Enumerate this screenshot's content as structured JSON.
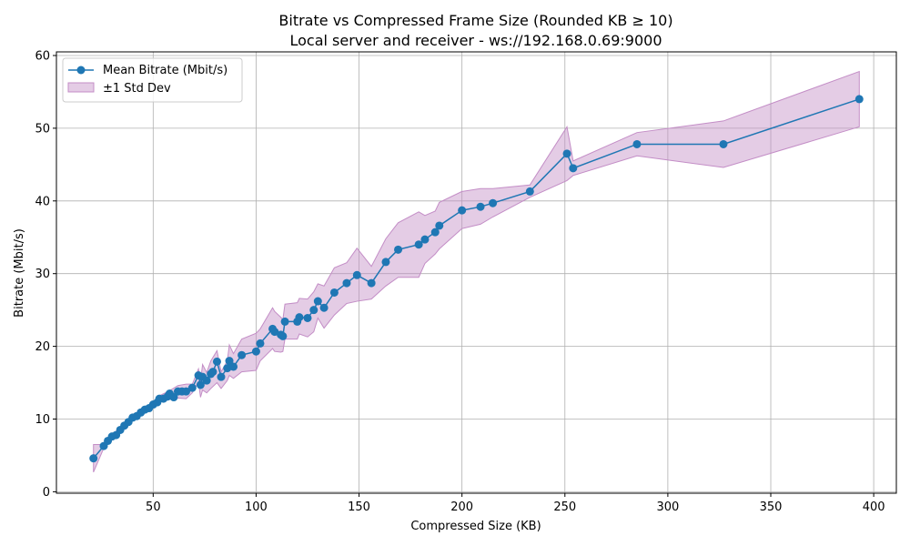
{
  "chart_data": {
    "type": "line",
    "title_line1": "Bitrate vs Compressed Frame Size (Rounded KB ≥ 10)",
    "title_line2": "Local server and receiver - ws://192.168.0.69:9000",
    "xlabel": "Compressed Size (KB)",
    "ylabel": "Bitrate (Mbit/s)",
    "xlim": [
      3,
      411
    ],
    "ylim": [
      -0.2,
      60.5
    ],
    "xticks": [
      50,
      100,
      150,
      200,
      250,
      300,
      350,
      400
    ],
    "yticks": [
      0,
      10,
      20,
      30,
      40,
      50,
      60
    ],
    "grid": true,
    "legend_position": "top-left",
    "series": [
      {
        "name": "Mean Bitrate (Mbit/s)",
        "color": "#1f77b4",
        "points": [
          [
            21,
            4.6
          ],
          [
            26,
            6.3
          ],
          [
            28,
            7.0
          ],
          [
            30,
            7.6
          ],
          [
            32,
            7.8
          ],
          [
            34,
            8.5
          ],
          [
            36,
            9.1
          ],
          [
            38,
            9.6
          ],
          [
            40,
            10.2
          ],
          [
            42,
            10.4
          ],
          [
            44,
            10.9
          ],
          [
            46,
            11.3
          ],
          [
            48,
            11.5
          ],
          [
            50,
            12.0
          ],
          [
            52,
            12.3
          ],
          [
            53,
            12.8
          ],
          [
            55,
            12.8
          ],
          [
            57,
            13.1
          ],
          [
            58,
            13.5
          ],
          [
            60,
            13.0
          ],
          [
            62,
            13.8
          ],
          [
            64,
            13.8
          ],
          [
            66,
            13.8
          ],
          [
            69,
            14.3
          ],
          [
            72,
            16.0
          ],
          [
            73,
            14.7
          ],
          [
            74,
            15.8
          ],
          [
            76,
            15.3
          ],
          [
            78,
            16.2
          ],
          [
            79,
            16.5
          ],
          [
            81,
            17.9
          ],
          [
            83,
            15.8
          ],
          [
            86,
            17.0
          ],
          [
            87,
            18.0
          ],
          [
            89,
            17.2
          ],
          [
            93,
            18.8
          ],
          [
            100,
            19.3
          ],
          [
            102,
            20.4
          ],
          [
            108,
            22.4
          ],
          [
            109,
            22.0
          ],
          [
            112,
            21.6
          ],
          [
            113,
            21.4
          ],
          [
            114,
            23.4
          ],
          [
            120,
            23.4
          ],
          [
            121,
            24.0
          ],
          [
            125,
            23.9
          ],
          [
            128,
            25.0
          ],
          [
            130,
            26.2
          ],
          [
            133,
            25.3
          ],
          [
            138,
            27.4
          ],
          [
            144,
            28.7
          ],
          [
            149,
            29.8
          ],
          [
            156,
            28.7
          ],
          [
            163,
            31.6
          ],
          [
            169,
            33.3
          ],
          [
            179,
            34.0
          ],
          [
            182,
            34.7
          ],
          [
            187,
            35.7
          ],
          [
            189,
            36.6
          ],
          [
            200,
            38.7
          ],
          [
            209,
            39.2
          ],
          [
            215,
            39.7
          ],
          [
            233,
            41.3
          ],
          [
            251,
            46.5
          ],
          [
            254,
            44.5
          ],
          [
            285,
            47.8
          ],
          [
            327,
            47.8
          ],
          [
            393,
            54.0
          ]
        ]
      },
      {
        "name": "±1 Std Dev",
        "color": "#c38dc6",
        "upper": [
          [
            21,
            6.5
          ],
          [
            26,
            6.5
          ],
          [
            30,
            7.8
          ],
          [
            36,
            9.4
          ],
          [
            40,
            10.5
          ],
          [
            46,
            11.5
          ],
          [
            50,
            12.3
          ],
          [
            53,
            13.2
          ],
          [
            58,
            13.9
          ],
          [
            62,
            14.6
          ],
          [
            66,
            14.8
          ],
          [
            69,
            14.8
          ],
          [
            72,
            16.9
          ],
          [
            73,
            15.2
          ],
          [
            74,
            17.5
          ],
          [
            76,
            16.4
          ],
          [
            78,
            18.0
          ],
          [
            81,
            19.4
          ],
          [
            83,
            16.5
          ],
          [
            86,
            18.0
          ],
          [
            87,
            20.2
          ],
          [
            89,
            19.0
          ],
          [
            93,
            21.0
          ],
          [
            100,
            21.8
          ],
          [
            102,
            22.4
          ],
          [
            108,
            25.3
          ],
          [
            109,
            24.8
          ],
          [
            112,
            24.0
          ],
          [
            113,
            23.7
          ],
          [
            114,
            25.8
          ],
          [
            120,
            26.0
          ],
          [
            121,
            26.6
          ],
          [
            125,
            26.5
          ],
          [
            128,
            27.5
          ],
          [
            130,
            28.6
          ],
          [
            133,
            28.3
          ],
          [
            138,
            30.8
          ],
          [
            144,
            31.5
          ],
          [
            149,
            33.5
          ],
          [
            156,
            31.0
          ],
          [
            163,
            34.8
          ],
          [
            169,
            37.0
          ],
          [
            179,
            38.5
          ],
          [
            182,
            38.0
          ],
          [
            187,
            38.6
          ],
          [
            189,
            39.8
          ],
          [
            200,
            41.3
          ],
          [
            209,
            41.7
          ],
          [
            215,
            41.7
          ],
          [
            233,
            42.2
          ],
          [
            251,
            50.2
          ],
          [
            254,
            45.5
          ],
          [
            285,
            49.4
          ],
          [
            327,
            51.0
          ],
          [
            393,
            57.8
          ]
        ],
        "lower": [
          [
            21,
            2.7
          ],
          [
            26,
            6.0
          ],
          [
            30,
            7.4
          ],
          [
            36,
            8.8
          ],
          [
            40,
            9.9
          ],
          [
            46,
            11.0
          ],
          [
            50,
            11.7
          ],
          [
            53,
            12.3
          ],
          [
            58,
            12.7
          ],
          [
            62,
            12.9
          ],
          [
            66,
            12.8
          ],
          [
            69,
            13.6
          ],
          [
            72,
            15.1
          ],
          [
            73,
            13.0
          ],
          [
            74,
            14.0
          ],
          [
            76,
            13.6
          ],
          [
            78,
            14.2
          ],
          [
            81,
            15.0
          ],
          [
            83,
            14.2
          ],
          [
            86,
            15.3
          ],
          [
            87,
            16.0
          ],
          [
            89,
            15.6
          ],
          [
            93,
            16.5
          ],
          [
            100,
            16.7
          ],
          [
            102,
            18.0
          ],
          [
            108,
            19.7
          ],
          [
            109,
            19.3
          ],
          [
            112,
            19.2
          ],
          [
            113,
            19.3
          ],
          [
            114,
            21.0
          ],
          [
            120,
            21.0
          ],
          [
            121,
            21.7
          ],
          [
            125,
            21.3
          ],
          [
            128,
            22.0
          ],
          [
            130,
            23.9
          ],
          [
            133,
            22.5
          ],
          [
            138,
            24.3
          ],
          [
            144,
            25.9
          ],
          [
            149,
            26.2
          ],
          [
            156,
            26.5
          ],
          [
            163,
            28.3
          ],
          [
            169,
            29.5
          ],
          [
            179,
            29.5
          ],
          [
            182,
            31.4
          ],
          [
            187,
            32.7
          ],
          [
            189,
            33.4
          ],
          [
            200,
            36.2
          ],
          [
            209,
            36.8
          ],
          [
            215,
            37.8
          ],
          [
            233,
            40.5
          ],
          [
            251,
            42.8
          ],
          [
            254,
            43.5
          ],
          [
            285,
            46.2
          ],
          [
            327,
            44.6
          ],
          [
            393,
            50.2
          ]
        ]
      }
    ]
  }
}
